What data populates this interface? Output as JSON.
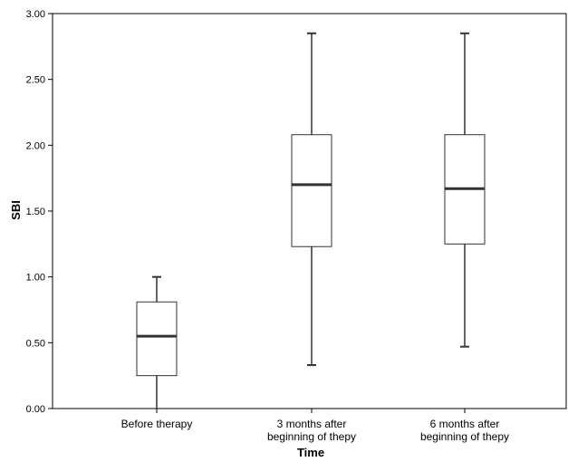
{
  "chart_data": {
    "type": "boxplot",
    "title": "",
    "xlabel": "Time",
    "ylabel": "SBI",
    "ylim": [
      0,
      3
    ],
    "yticks": [
      "0.00",
      "0.50",
      "1.00",
      "1.50",
      "2.00",
      "2.50",
      "3.00"
    ],
    "yticks_values": [
      0,
      0.5,
      1,
      1.5,
      2,
      2.5,
      3
    ],
    "grid": false,
    "categories": [
      [
        "Before therapy"
      ],
      [
        "3 months after",
        "beginning of thepy"
      ],
      [
        "6 months after",
        "beginning of thepy"
      ]
    ],
    "boxes": [
      {
        "min": 0.0,
        "q1": 0.25,
        "median": 0.55,
        "q3": 0.81,
        "max": 1.0
      },
      {
        "min": 0.33,
        "q1": 1.23,
        "median": 1.7,
        "q3": 2.08,
        "max": 2.85
      },
      {
        "min": 0.47,
        "q1": 1.25,
        "median": 1.67,
        "q3": 2.08,
        "max": 2.85
      }
    ],
    "colors": {
      "box_fill": "#ffffff",
      "stroke": "#333333",
      "axis": "#000000"
    }
  }
}
